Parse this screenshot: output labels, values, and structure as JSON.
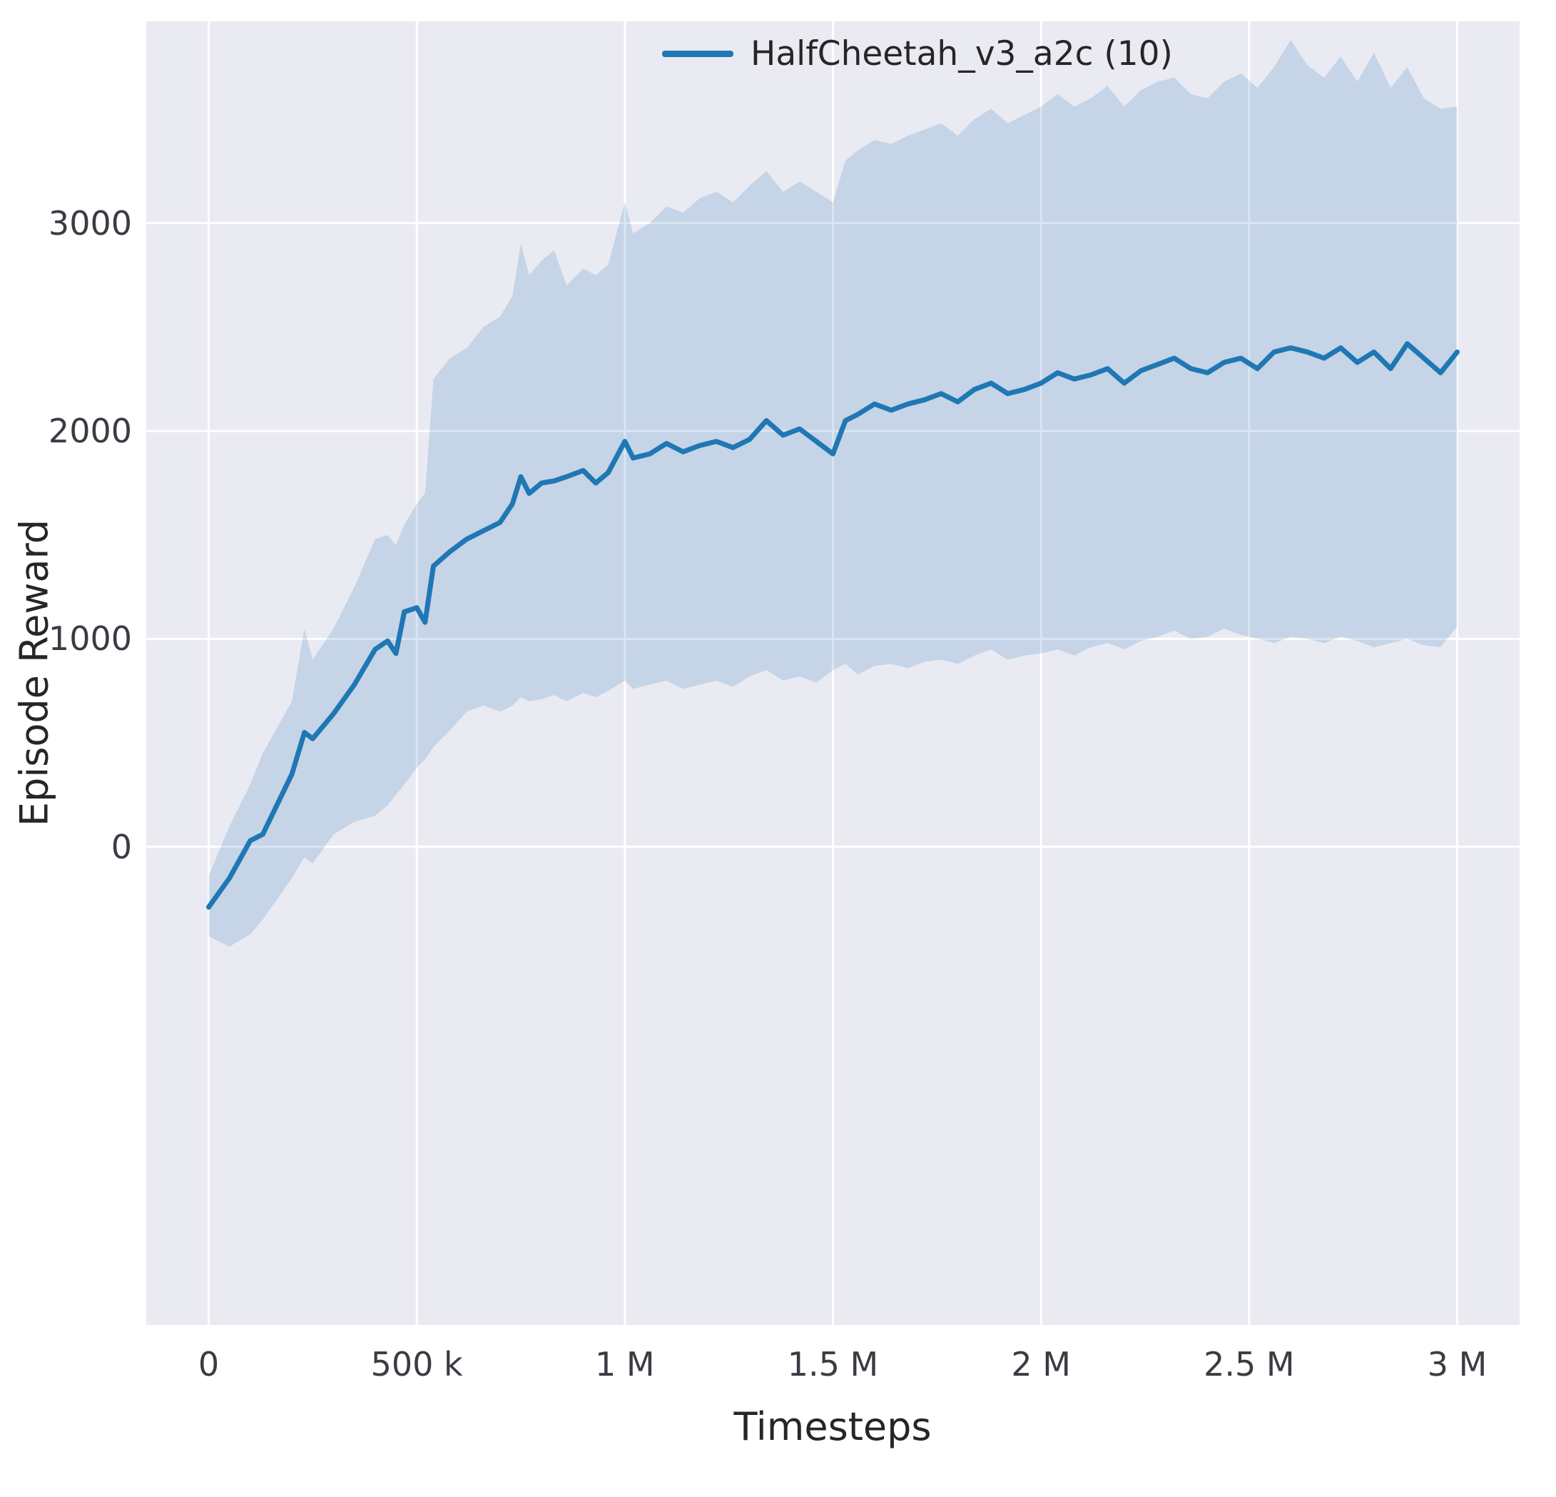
{
  "figure": {
    "background": "#ffffff"
  },
  "chart_data": {
    "type": "line",
    "title": "",
    "xlabel": "Timesteps",
    "ylabel": "Episode Reward",
    "grid": true,
    "plot_background": "#eaeaf2",
    "grid_color": "#ffffff",
    "text_color": "#262626",
    "xlim": [
      -150000,
      3150000
    ],
    "ylim": [
      -2300,
      3970
    ],
    "legend": {
      "position": "upper right",
      "entries": [
        {
          "label": "HalfCheetah_v3_a2c (10)",
          "color": "#1f77b4"
        }
      ]
    },
    "xticks": {
      "values": [
        0,
        500000,
        1000000,
        1500000,
        2000000,
        2500000,
        3000000
      ],
      "labels": [
        "0",
        "500 k",
        "1 M",
        "1.5 M",
        "2 M",
        "2.5 M",
        "3 M"
      ]
    },
    "yticks": {
      "values": [
        0,
        1000,
        2000,
        3000
      ],
      "labels": [
        "0",
        "1000",
        "2000",
        "3000"
      ]
    },
    "series": [
      {
        "name": "HalfCheetah_v3_a2c (10)",
        "color": "#1f77b4",
        "band_color": "#1f77b4",
        "band_opacity": 0.18,
        "line_width": 7,
        "x": [
          0,
          50000,
          100000,
          130000,
          200000,
          230000,
          250000,
          300000,
          350000,
          400000,
          430000,
          450000,
          470000,
          500000,
          520000,
          540000,
          580000,
          620000,
          660000,
          700000,
          730000,
          750000,
          770000,
          800000,
          830000,
          860000,
          900000,
          930000,
          960000,
          1000000,
          1020000,
          1060000,
          1100000,
          1140000,
          1180000,
          1220000,
          1260000,
          1300000,
          1340000,
          1380000,
          1420000,
          1460000,
          1500000,
          1530000,
          1560000,
          1600000,
          1640000,
          1680000,
          1720000,
          1760000,
          1800000,
          1840000,
          1880000,
          1920000,
          1960000,
          2000000,
          2040000,
          2080000,
          2120000,
          2160000,
          2200000,
          2240000,
          2280000,
          2320000,
          2360000,
          2400000,
          2440000,
          2480000,
          2520000,
          2560000,
          2600000,
          2640000,
          2680000,
          2720000,
          2760000,
          2800000,
          2840000,
          2880000,
          2920000,
          2960000,
          3000000
        ],
        "mean": [
          -290,
          -150,
          30,
          60,
          350,
          550,
          520,
          640,
          780,
          950,
          990,
          930,
          1130,
          1150,
          1080,
          1350,
          1420,
          1480,
          1520,
          1560,
          1650,
          1780,
          1700,
          1750,
          1760,
          1780,
          1810,
          1750,
          1800,
          1950,
          1870,
          1890,
          1940,
          1900,
          1930,
          1950,
          1920,
          1960,
          2050,
          1980,
          2010,
          1950,
          1890,
          2050,
          2080,
          2130,
          2100,
          2130,
          2150,
          2180,
          2140,
          2200,
          2230,
          2180,
          2200,
          2230,
          2280,
          2250,
          2270,
          2300,
          2230,
          2290,
          2320,
          2350,
          2300,
          2280,
          2330,
          2350,
          2300,
          2380,
          2400,
          2380,
          2350,
          2400,
          2330,
          2380,
          2300,
          2420,
          2350,
          2280,
          2380
        ],
        "lower": [
          -430,
          -480,
          -420,
          -350,
          -150,
          -50,
          -80,
          60,
          120,
          150,
          200,
          250,
          300,
          380,
          420,
          480,
          560,
          650,
          680,
          650,
          680,
          720,
          700,
          710,
          730,
          700,
          740,
          720,
          750,
          800,
          760,
          780,
          800,
          760,
          780,
          800,
          770,
          820,
          850,
          800,
          820,
          790,
          850,
          880,
          830,
          870,
          880,
          860,
          890,
          900,
          880,
          920,
          950,
          900,
          920,
          930,
          950,
          920,
          960,
          980,
          950,
          990,
          1010,
          1040,
          1000,
          1010,
          1050,
          1020,
          1000,
          980,
          1010,
          1000,
          980,
          1010,
          990,
          960,
          980,
          1000,
          970,
          960,
          1060
        ],
        "upper": [
          -140,
          100,
          300,
          450,
          700,
          1050,
          900,
          1050,
          1250,
          1480,
          1500,
          1450,
          1550,
          1650,
          1700,
          2250,
          2350,
          2400,
          2500,
          2550,
          2650,
          2900,
          2750,
          2820,
          2870,
          2700,
          2780,
          2750,
          2800,
          3100,
          2950,
          3000,
          3080,
          3050,
          3120,
          3150,
          3100,
          3180,
          3250,
          3150,
          3200,
          3150,
          3100,
          3300,
          3350,
          3400,
          3380,
          3420,
          3450,
          3480,
          3420,
          3500,
          3550,
          3480,
          3520,
          3560,
          3620,
          3560,
          3600,
          3660,
          3560,
          3640,
          3680,
          3700,
          3620,
          3600,
          3680,
          3720,
          3650,
          3750,
          3880,
          3760,
          3700,
          3800,
          3680,
          3820,
          3650,
          3750,
          3600,
          3550,
          3560
        ]
      }
    ]
  }
}
